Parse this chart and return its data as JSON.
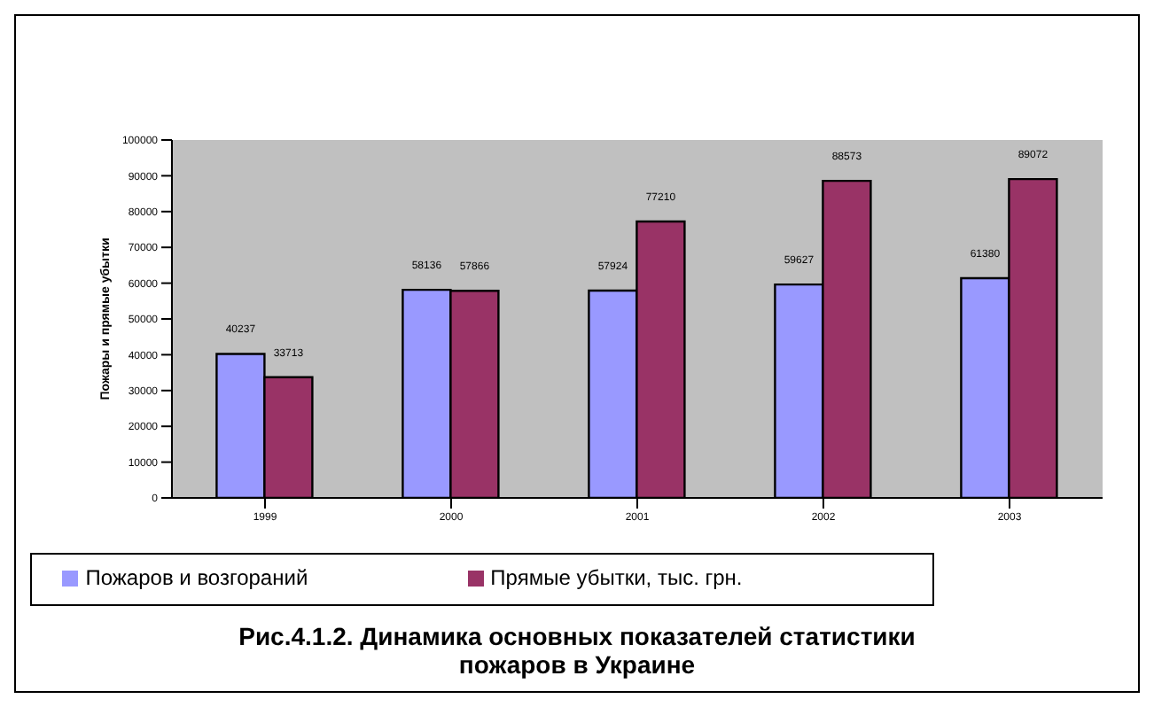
{
  "chart_data": {
    "type": "bar",
    "title": "Рис.4.1.2. Динамика основных показателей статистики пожаров в Украине",
    "ylabel": "Пожары и прямые убытки",
    "categories": [
      "1999",
      "2000",
      "2001",
      "2002",
      "2003"
    ],
    "series": [
      {
        "name": "Пожаров и возгораний",
        "color": "#9999ff",
        "values": [
          40237,
          58136,
          57924,
          59627,
          61380
        ]
      },
      {
        "name": "Прямые убытки, тыс. грн.",
        "color": "#993366",
        "values": [
          33713,
          57866,
          77210,
          88573,
          89072
        ]
      }
    ],
    "ylim": [
      0,
      100000
    ],
    "yticks": [
      0,
      10000,
      20000,
      30000,
      40000,
      50000,
      60000,
      70000,
      80000,
      90000,
      100000
    ],
    "data_labels": true,
    "legend": "bottom",
    "grid": false
  }
}
